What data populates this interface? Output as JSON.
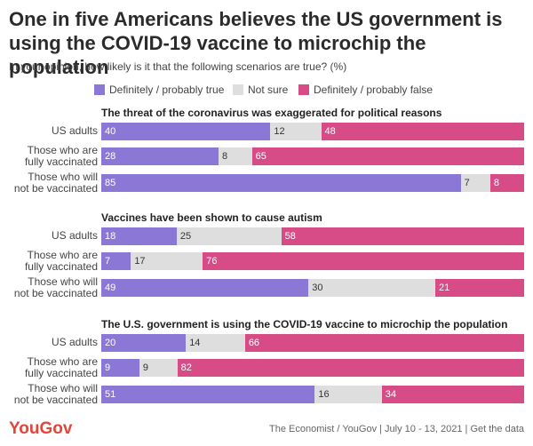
{
  "title": "One in five Americans believes the US government is using the COVID-19 vaccine to microchip the population",
  "subtitle": "In your opinion, how likely is it that the following scenarios are true? (%)",
  "colors": {
    "true": "#8b77d5",
    "notsure": "#dedede",
    "false": "#d74b86"
  },
  "legend": [
    {
      "label": "Definitely / probably true",
      "color": "#8b77d5"
    },
    {
      "label": "Not sure",
      "color": "#dedede"
    },
    {
      "label": "Definitely / probably false",
      "color": "#d74b86"
    }
  ],
  "chart_data": {
    "type": "bar",
    "stacked": true,
    "orientation": "horizontal",
    "unit": "%",
    "xlim": [
      0,
      100
    ],
    "series_names": [
      "Definitely / probably true",
      "Not sure",
      "Definitely / probably false"
    ],
    "categories": [
      "US adults",
      "Those who are fully vaccinated",
      "Those who will not be vaccinated"
    ],
    "category_lines": [
      [
        "US adults"
      ],
      [
        "Those who are",
        "fully vaccinated"
      ],
      [
        "Those who will",
        "not be vaccinated"
      ]
    ],
    "panels": [
      {
        "title": "The threat of the coronavirus was exaggerated for political reasons",
        "rows": [
          [
            40,
            12,
            48
          ],
          [
            28,
            8,
            65
          ],
          [
            85,
            7,
            8
          ]
        ]
      },
      {
        "title": "Vaccines have been shown to cause autism",
        "rows": [
          [
            18,
            25,
            58
          ],
          [
            7,
            17,
            76
          ],
          [
            49,
            30,
            21
          ]
        ]
      },
      {
        "title": "The U.S. government is using the COVID-19 vaccine to microchip the population",
        "rows": [
          [
            20,
            14,
            66
          ],
          [
            9,
            9,
            82
          ],
          [
            51,
            16,
            34
          ]
        ]
      }
    ]
  },
  "footer": {
    "logo": "YouGov",
    "source": "The Economist / YouGov | July 10 - 13, 2021 | Get the data"
  }
}
